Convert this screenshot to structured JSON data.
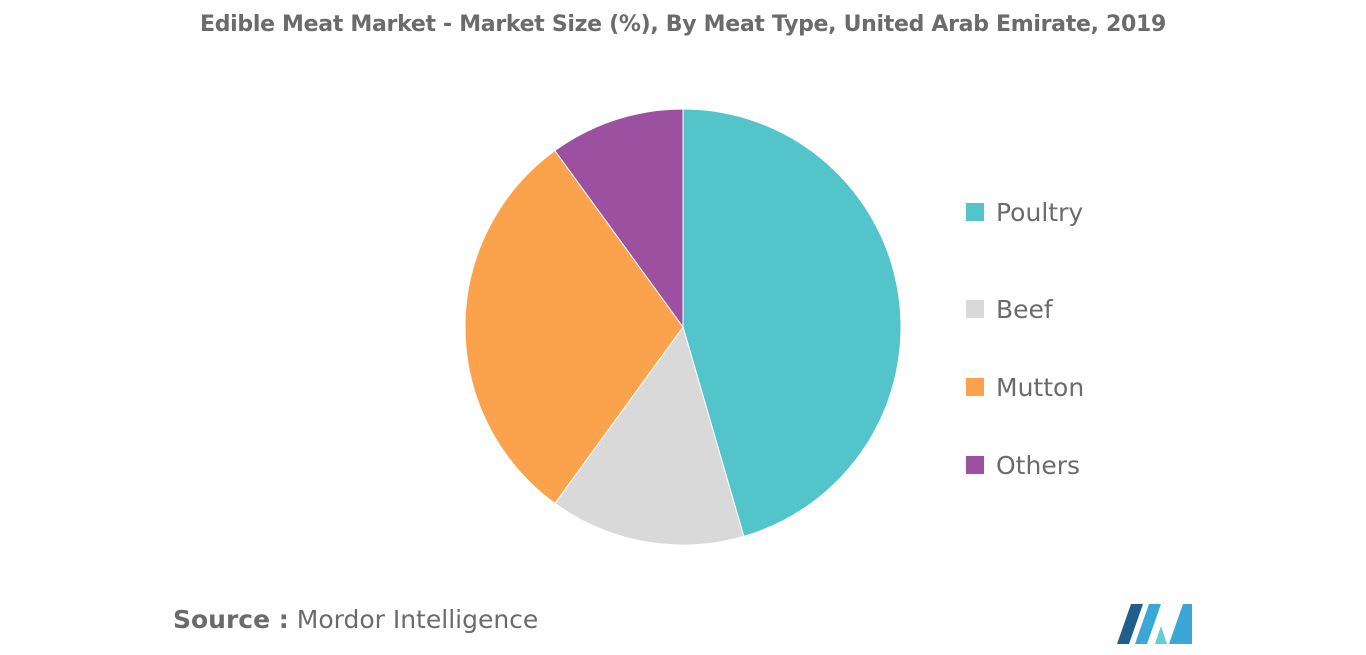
{
  "chart_data": {
    "type": "pie",
    "title": "Edible Meat Market - Market Size (%), By Meat Type, United Arab Emirate, 2019",
    "categories": [
      "Poultry",
      "Beef",
      "Mutton",
      "Others"
    ],
    "values": [
      45.5,
      14.5,
      30,
      10
    ],
    "colors": [
      "#52c4ca",
      "#d9d9d9",
      "#fba24c",
      "#9c51a0"
    ],
    "legend_position": "right"
  },
  "source": {
    "key": "Source :",
    "text": "Mordor Intelligence"
  },
  "logo": {
    "icon": "mordor-intelligence-logo",
    "colors": [
      "#1f5f8b",
      "#3aa7d6",
      "#5fcfd2"
    ]
  }
}
